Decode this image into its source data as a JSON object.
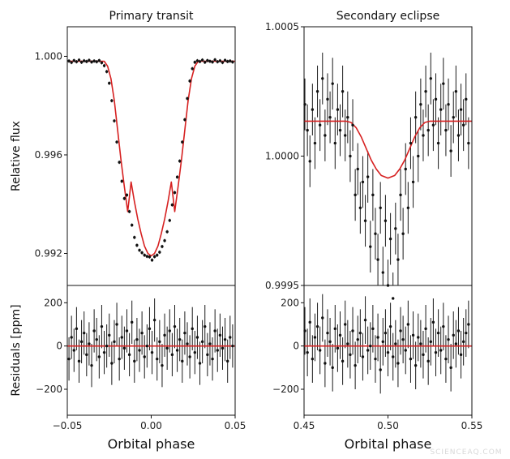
{
  "watermark": "SCIENCEAQ.COM",
  "chart_data": [
    {
      "id": "primary-transit",
      "type": "line",
      "title": "Primary transit",
      "xlabel": "",
      "ylabel": "Relative flux",
      "xlim": [
        -0.05,
        0.05
      ],
      "ylim": [
        0.9907,
        1.0012
      ],
      "yticks": [
        0.992,
        0.996,
        1.0
      ],
      "ytick_labels": [
        "0.992",
        "0.996",
        "1.000"
      ],
      "model": {
        "color": "#d62020",
        "x": [
          -0.05,
          -0.035,
          -0.028,
          -0.026,
          -0.024,
          -0.022,
          -0.02,
          -0.018,
          -0.016,
          -0.014,
          -0.012,
          -0.01,
          -0.008,
          -0.006,
          -0.004,
          -0.002,
          0.0,
          0.002,
          0.004,
          0.006,
          0.008,
          0.01,
          0.012,
          0.014,
          0.016,
          0.018,
          0.02,
          0.022,
          0.024,
          0.026,
          0.028,
          0.035,
          0.05
        ],
        "y": [
          0.9998,
          0.9998,
          0.9998,
          0.9996,
          0.9991,
          0.9982,
          0.997,
          0.9958,
          0.9947,
          0.9937,
          0.9949,
          0.9941,
          0.9934,
          0.9928,
          0.9923,
          0.992,
          0.9919,
          0.992,
          0.9923,
          0.9928,
          0.9934,
          0.9941,
          0.9949,
          0.9937,
          0.9947,
          0.9958,
          0.997,
          0.9982,
          0.9991,
          0.9996,
          0.9998,
          0.9998,
          0.9998
        ]
      },
      "points": {
        "x": [
          -0.049,
          -0.0475,
          -0.046,
          -0.0445,
          -0.043,
          -0.0415,
          -0.04,
          -0.0385,
          -0.037,
          -0.0355,
          -0.034,
          -0.0325,
          -0.031,
          -0.0295,
          -0.028,
          -0.0265,
          -0.025,
          -0.0235,
          -0.022,
          -0.0205,
          -0.019,
          -0.0175,
          -0.016,
          -0.0145,
          -0.013,
          -0.0115,
          -0.01,
          -0.0085,
          -0.007,
          -0.0055,
          -0.004,
          -0.0025,
          -0.001,
          0.0005,
          0.002,
          0.0035,
          0.005,
          0.0065,
          0.008,
          0.0095,
          0.011,
          0.0125,
          0.014,
          0.0155,
          0.017,
          0.0185,
          0.02,
          0.0215,
          0.023,
          0.0245,
          0.026,
          0.0275,
          0.029,
          0.0305,
          0.032,
          0.0335,
          0.035,
          0.0365,
          0.038,
          0.0395,
          0.041,
          0.0425,
          0.044,
          0.0455,
          0.047,
          0.0485
        ],
        "y": [
          0.99981,
          0.99975,
          0.99983,
          0.99978,
          0.99985,
          0.99976,
          0.99982,
          0.99979,
          0.99984,
          0.99977,
          0.99981,
          0.99978,
          0.99983,
          0.99974,
          0.99962,
          0.99938,
          0.99891,
          0.9982,
          0.99738,
          0.99652,
          0.9957,
          0.99493,
          0.99423,
          0.99437,
          0.9937,
          0.99315,
          0.99265,
          0.99233,
          0.99213,
          0.99203,
          0.99193,
          0.99188,
          0.99186,
          0.99173,
          0.99187,
          0.99193,
          0.99205,
          0.99228,
          0.99252,
          0.99288,
          0.99334,
          0.99397,
          0.99447,
          0.9951,
          0.99575,
          0.99652,
          0.99743,
          0.99829,
          0.999,
          0.9995,
          0.99976,
          0.99982,
          0.99979,
          0.99985,
          0.99976,
          0.99983,
          0.9998,
          0.99977,
          0.99986,
          0.99978,
          0.99982,
          0.99975,
          0.99984,
          0.99979,
          0.99981,
          0.99977
        ],
        "yerr": 7e-05
      }
    },
    {
      "id": "secondary-eclipse",
      "type": "line",
      "title": "Secondary eclipse",
      "xlabel": "",
      "ylabel": "",
      "xlim": [
        0.45,
        0.55
      ],
      "ylim": [
        0.9995,
        1.0005
      ],
      "yticks": [
        0.9995,
        1.0,
        1.0005
      ],
      "ytick_labels": [
        "0.9995",
        "1.0000",
        "1.0005"
      ],
      "model": {
        "color": "#d62020",
        "x": [
          0.45,
          0.475,
          0.478,
          0.481,
          0.484,
          0.487,
          0.49,
          0.493,
          0.496,
          0.5,
          0.504,
          0.507,
          0.51,
          0.513,
          0.516,
          0.519,
          0.522,
          0.525,
          0.55
        ],
        "y": [
          1.000135,
          1.000135,
          1.00013,
          1.00011,
          1.000075,
          1.00003,
          0.999985,
          0.99995,
          0.999925,
          0.999915,
          0.999925,
          0.99995,
          0.999985,
          1.00003,
          1.000075,
          1.00011,
          1.00013,
          1.000135,
          1.000135
        ]
      },
      "points": {
        "x": [
          0.4505,
          0.452,
          0.4535,
          0.455,
          0.4565,
          0.458,
          0.4595,
          0.461,
          0.4625,
          0.464,
          0.4655,
          0.467,
          0.4685,
          0.47,
          0.4715,
          0.473,
          0.4745,
          0.476,
          0.4775,
          0.479,
          0.4805,
          0.482,
          0.4835,
          0.485,
          0.4865,
          0.488,
          0.4895,
          0.491,
          0.4925,
          0.494,
          0.4955,
          0.497,
          0.4985,
          0.5,
          0.5015,
          0.503,
          0.5045,
          0.506,
          0.5075,
          0.509,
          0.5105,
          0.512,
          0.5135,
          0.515,
          0.5165,
          0.518,
          0.5195,
          0.521,
          0.5225,
          0.524,
          0.5255,
          0.527,
          0.5285,
          0.53,
          0.5315,
          0.533,
          0.5345,
          0.536,
          0.5375,
          0.539,
          0.5405,
          0.542,
          0.5435,
          0.545,
          0.5465,
          0.548
        ],
        "y": [
          1.0002,
          1.0001,
          0.99998,
          1.00018,
          1.00005,
          1.00025,
          1.00012,
          1.0003,
          1.00008,
          1.00022,
          1.00015,
          1.00028,
          1.00005,
          1.00018,
          1.0001,
          1.00025,
          1.00008,
          1.00015,
          1.0,
          1.00012,
          0.99985,
          0.99995,
          0.9998,
          0.9999,
          0.99975,
          0.99992,
          0.99965,
          0.99985,
          0.9997,
          0.9996,
          0.9998,
          0.99955,
          0.99975,
          0.9995,
          0.99968,
          0.99945,
          0.99972,
          0.9996,
          0.99985,
          0.9997,
          0.99995,
          0.9998,
          1.00005,
          0.9999,
          1.00015,
          1.0,
          1.0002,
          1.00008,
          1.00025,
          1.0001,
          1.0003,
          1.00012,
          1.00022,
          1.00005,
          1.00018,
          1.00028,
          1.0001,
          1.0002,
          1.00002,
          1.00015,
          1.00025,
          1.00008,
          1.00018,
          1.00012,
          1.00022,
          1.00005
        ],
        "yerr": 0.0001
      }
    },
    {
      "id": "primary-residuals",
      "type": "line",
      "title": "",
      "xlabel": "Orbital phase",
      "ylabel": "Residuals [ppm]",
      "xlim": [
        -0.05,
        0.05
      ],
      "ylim": [
        -320,
        280
      ],
      "xticks": [
        -0.05,
        0.0,
        0.05
      ],
      "xtick_labels": [
        "−0.05",
        "0.00",
        "0.05"
      ],
      "yticks": [
        -200,
        0,
        200
      ],
      "ytick_labels": [
        "−200",
        "0",
        "200"
      ],
      "model": {
        "color": "#d62020",
        "y": 0
      },
      "points": {
        "x": [
          -0.049,
          -0.0475,
          -0.046,
          -0.0445,
          -0.043,
          -0.0415,
          -0.04,
          -0.0385,
          -0.037,
          -0.0355,
          -0.034,
          -0.0325,
          -0.031,
          -0.0295,
          -0.028,
          -0.0265,
          -0.025,
          -0.0235,
          -0.022,
          -0.0205,
          -0.019,
          -0.0175,
          -0.016,
          -0.0145,
          -0.013,
          -0.0115,
          -0.01,
          -0.0085,
          -0.007,
          -0.0055,
          -0.004,
          -0.0025,
          -0.001,
          0.0005,
          0.002,
          0.0035,
          0.005,
          0.0065,
          0.008,
          0.0095,
          0.011,
          0.0125,
          0.014,
          0.0155,
          0.017,
          0.0185,
          0.02,
          0.0215,
          0.023,
          0.0245,
          0.026,
          0.0275,
          0.029,
          0.0305,
          0.032,
          0.0335,
          0.035,
          0.0365,
          0.038,
          0.0395,
          0.041,
          0.0425,
          0.044,
          0.0455,
          0.047,
          0.0485
        ],
        "y": [
          -60,
          40,
          -20,
          80,
          -70,
          20,
          60,
          -40,
          10,
          -90,
          70,
          30,
          -50,
          90,
          -30,
          0,
          50,
          -80,
          20,
          100,
          -60,
          40,
          -10,
          70,
          -40,
          110,
          -70,
          30,
          -20,
          60,
          -50,
          0,
          80,
          -30,
          120,
          -60,
          20,
          -90,
          50,
          -10,
          70,
          -40,
          90,
          -20,
          30,
          -70,
          60,
          10,
          -50,
          80,
          -30,
          40,
          -80,
          20,
          90,
          -40,
          10,
          -60,
          70,
          -20,
          50,
          -10,
          30,
          -70,
          40,
          0
        ],
        "yerr": 100
      }
    },
    {
      "id": "secondary-residuals",
      "type": "line",
      "title": "",
      "xlabel": "Orbital phase",
      "ylabel": "",
      "xlim": [
        0.45,
        0.55
      ],
      "ylim": [
        -320,
        280
      ],
      "xticks": [
        0.45,
        0.5,
        0.55
      ],
      "xtick_labels": [
        "0.45",
        "0.50",
        "0.55"
      ],
      "yticks": [
        -200,
        0,
        200
      ],
      "ytick_labels": [
        "−200",
        "0",
        "200"
      ],
      "model": {
        "color": "#d62020",
        "y": 0
      },
      "points": {
        "x": [
          0.4505,
          0.452,
          0.4535,
          0.455,
          0.4565,
          0.458,
          0.4595,
          0.461,
          0.4625,
          0.464,
          0.4655,
          0.467,
          0.4685,
          0.47,
          0.4715,
          0.473,
          0.4745,
          0.476,
          0.4775,
          0.479,
          0.4805,
          0.482,
          0.4835,
          0.485,
          0.4865,
          0.488,
          0.4895,
          0.491,
          0.4925,
          0.494,
          0.4955,
          0.497,
          0.4985,
          0.5,
          0.5015,
          0.503,
          0.5045,
          0.506,
          0.5075,
          0.509,
          0.5105,
          0.512,
          0.5135,
          0.515,
          0.5165,
          0.518,
          0.5195,
          0.521,
          0.5225,
          0.524,
          0.5255,
          0.527,
          0.5285,
          0.53,
          0.5315,
          0.533,
          0.5345,
          0.536,
          0.5375,
          0.539,
          0.5405,
          0.542,
          0.5435,
          0.545,
          0.5465,
          0.548
        ],
        "y": [
          70,
          -30,
          110,
          -60,
          40,
          90,
          -20,
          130,
          -80,
          60,
          20,
          -100,
          80,
          -10,
          50,
          -70,
          100,
          10,
          -40,
          70,
          -90,
          30,
          60,
          -50,
          120,
          -20,
          0,
          80,
          -60,
          40,
          -110,
          20,
          60,
          -30,
          90,
          -50,
          10,
          -80,
          70,
          30,
          -20,
          100,
          -60,
          50,
          -90,
          40,
          10,
          -40,
          80,
          -70,
          20,
          110,
          -30,
          60,
          -20,
          90,
          -60,
          30,
          -100,
          50,
          10,
          70,
          -40,
          20,
          60,
          100
        ],
        "yerr": 110
      }
    }
  ]
}
